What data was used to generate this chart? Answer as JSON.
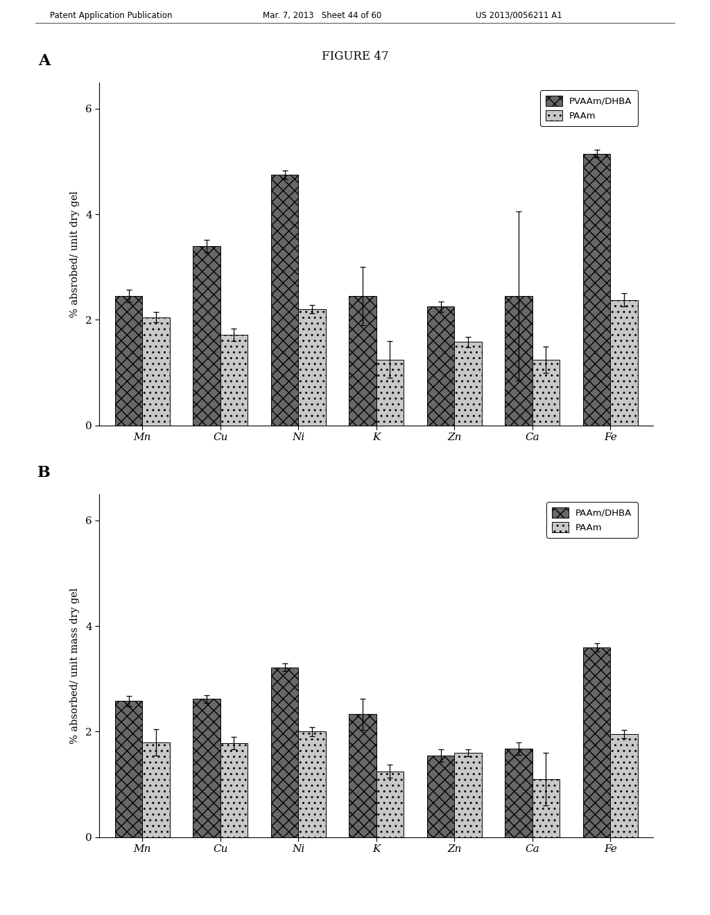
{
  "figure_title": "FIGURE 47",
  "header_left": "Patent Application Publication",
  "header_mid": "Mar. 7, 2013   Sheet 44 of 60",
  "header_right": "US 2013/0056211 A1",
  "panel_A": {
    "label": "A",
    "categories": [
      "Mn",
      "Cu",
      "Ni",
      "K",
      "Zn",
      "Ca",
      "Fe"
    ],
    "series1_label": "PVAAm/DHBA",
    "series2_label": "PAAm",
    "series1_values": [
      2.45,
      3.4,
      4.75,
      2.45,
      2.25,
      2.45,
      5.15
    ],
    "series2_values": [
      2.05,
      1.72,
      2.2,
      1.25,
      1.58,
      1.25,
      2.38
    ],
    "series1_errors": [
      0.12,
      0.12,
      0.08,
      0.55,
      0.1,
      1.6,
      0.07
    ],
    "series2_errors": [
      0.1,
      0.12,
      0.08,
      0.35,
      0.1,
      0.25,
      0.12
    ],
    "ylabel": "% absrobed/ unit dry gel",
    "ylim": [
      0,
      6.5
    ],
    "yticks": [
      0,
      2,
      4,
      6
    ]
  },
  "panel_B": {
    "label": "B",
    "categories": [
      "Mn",
      "Cu",
      "Ni",
      "K",
      "Zn",
      "Ca",
      "Fe"
    ],
    "series1_label": "PAAm/DHBA",
    "series2_label": "PAAm",
    "series1_values": [
      2.58,
      2.62,
      3.22,
      2.33,
      1.55,
      1.68,
      3.6
    ],
    "series2_values": [
      1.8,
      1.78,
      2.0,
      1.25,
      1.6,
      1.1,
      1.95
    ],
    "series1_errors": [
      0.1,
      0.07,
      0.07,
      0.3,
      0.12,
      0.12,
      0.08
    ],
    "series2_errors": [
      0.25,
      0.12,
      0.08,
      0.12,
      0.07,
      0.5,
      0.08
    ],
    "ylabel": "% absorbed/ unit mass dry gel",
    "ylim": [
      0,
      6.5
    ],
    "yticks": [
      0,
      2,
      4,
      6
    ]
  },
  "bar_color_dark": "#686868",
  "bar_color_light": "#c8c8c8",
  "bar_hatch_dark": "xx",
  "bar_hatch_light": "..",
  "bar_width": 0.35,
  "background_color": "#ffffff",
  "figure_bg": "#ffffff"
}
